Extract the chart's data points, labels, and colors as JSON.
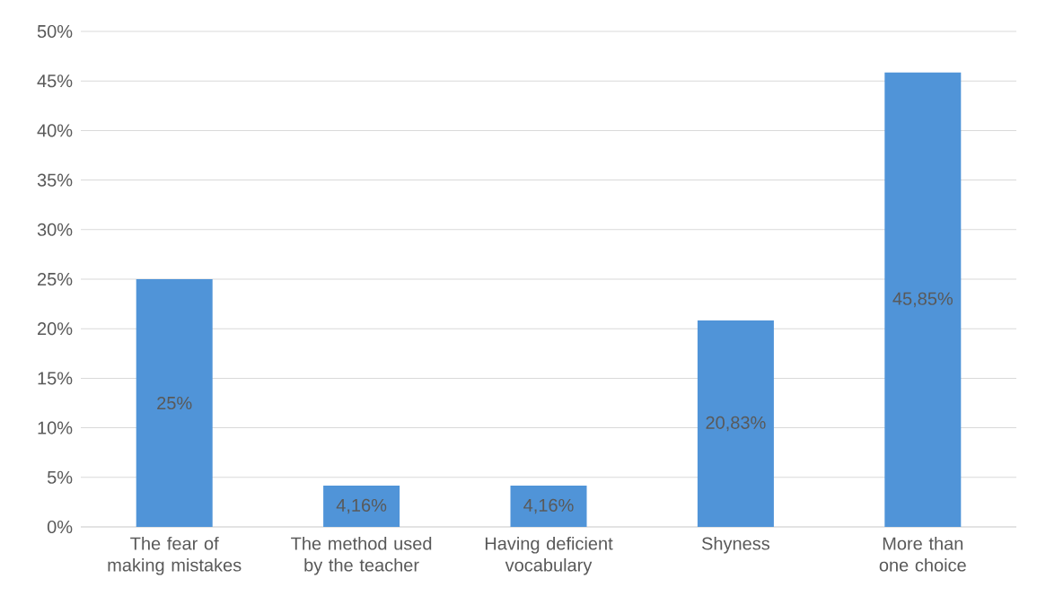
{
  "chart_data": {
    "type": "bar",
    "categories": [
      "The fear of making mistakes",
      "The method used by the teacher",
      "Having deficient vocabulary",
      "Shyness",
      "More than one choice"
    ],
    "values": [
      25,
      4.16,
      4.16,
      20.83,
      45.85
    ],
    "value_labels": [
      "25%",
      "4,16%",
      "4,16%",
      "20,83%",
      "45,85%"
    ],
    "color": "#5094d8",
    "ylim": [
      0,
      50
    ],
    "yticks": [
      {
        "value": 0,
        "label": "0%"
      },
      {
        "value": 5,
        "label": "5%"
      },
      {
        "value": 10,
        "label": "10%"
      },
      {
        "value": 15,
        "label": "15%"
      },
      {
        "value": 20,
        "label": "20%"
      },
      {
        "value": 25,
        "label": "25%"
      },
      {
        "value": 30,
        "label": "30%"
      },
      {
        "value": 35,
        "label": "35%"
      },
      {
        "value": 40,
        "label": "40%"
      },
      {
        "value": 45,
        "label": "45%"
      },
      {
        "value": 50,
        "label": "50%"
      }
    ],
    "grid": "y"
  }
}
